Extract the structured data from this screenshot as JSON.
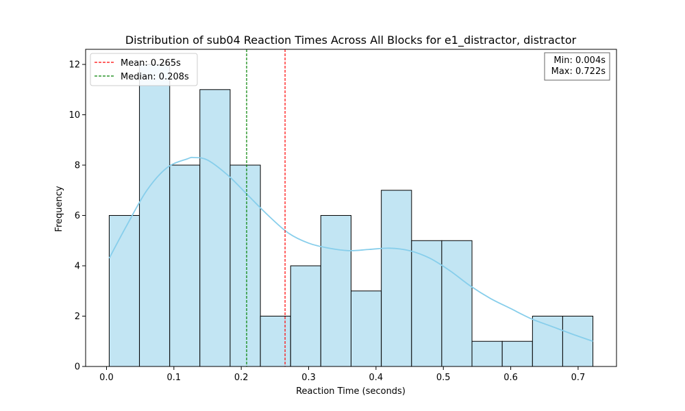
{
  "chart_data": {
    "type": "bar",
    "title": "Distribution of sub04 Reaction Times Across All Blocks for e1_distractor, distractor",
    "xlabel": "Reaction Time (seconds)",
    "ylabel": "Frequency",
    "xlim": [
      -0.031,
      0.757
    ],
    "ylim": [
      0,
      12.6
    ],
    "xticks": [
      0.0,
      0.1,
      0.2,
      0.3,
      0.4,
      0.5,
      0.6,
      0.7
    ],
    "xtick_labels": [
      "0.0",
      "0.1",
      "0.2",
      "0.3",
      "0.4",
      "0.5",
      "0.6",
      "0.7"
    ],
    "yticks": [
      0,
      2,
      4,
      6,
      8,
      10,
      12
    ],
    "ytick_labels": [
      "0",
      "2",
      "4",
      "6",
      "8",
      "10",
      "12"
    ],
    "bins": [
      {
        "start": 0.004,
        "end": 0.0489,
        "count": 6
      },
      {
        "start": 0.0489,
        "end": 0.0938,
        "count": 12
      },
      {
        "start": 0.0938,
        "end": 0.1386,
        "count": 8
      },
      {
        "start": 0.1386,
        "end": 0.1835,
        "count": 11
      },
      {
        "start": 0.1835,
        "end": 0.2284,
        "count": 8
      },
      {
        "start": 0.2284,
        "end": 0.2733,
        "count": 2
      },
      {
        "start": 0.2733,
        "end": 0.3181,
        "count": 4
      },
      {
        "start": 0.3181,
        "end": 0.363,
        "count": 6
      },
      {
        "start": 0.363,
        "end": 0.4079,
        "count": 3
      },
      {
        "start": 0.4079,
        "end": 0.4528,
        "count": 7
      },
      {
        "start": 0.4528,
        "end": 0.4976,
        "count": 5
      },
      {
        "start": 0.4976,
        "end": 0.5425,
        "count": 5
      },
      {
        "start": 0.5425,
        "end": 0.5874,
        "count": 1
      },
      {
        "start": 0.5874,
        "end": 0.6323,
        "count": 1
      },
      {
        "start": 0.6323,
        "end": 0.6771,
        "count": 2
      },
      {
        "start": 0.6771,
        "end": 0.722,
        "count": 2
      }
    ],
    "kde": {
      "x": [
        0.004,
        0.03,
        0.06,
        0.09,
        0.12,
        0.13,
        0.15,
        0.18,
        0.21,
        0.24,
        0.27,
        0.3,
        0.33,
        0.36,
        0.39,
        0.42,
        0.45,
        0.48,
        0.51,
        0.54,
        0.57,
        0.6,
        0.63,
        0.66,
        0.69,
        0.722
      ],
      "y": [
        4.3,
        5.6,
        7.0,
        7.9,
        8.25,
        8.3,
        8.2,
        7.6,
        6.8,
        6.0,
        5.3,
        4.9,
        4.7,
        4.6,
        4.65,
        4.7,
        4.6,
        4.3,
        3.8,
        3.2,
        2.7,
        2.3,
        1.9,
        1.6,
        1.3,
        1.0
      ],
      "color": "#87ceeb"
    },
    "bar_fill": "#c2e5f3",
    "bar_edge": "#000000",
    "mean": {
      "value": 0.265,
      "label": "Mean: 0.265s",
      "color": "#ff0000"
    },
    "median": {
      "value": 0.208,
      "label": "Median: 0.208s",
      "color": "#008000"
    },
    "legend_position": "upper-left",
    "stats_box": {
      "lines": [
        "Min: 0.004s",
        "Max: 0.722s"
      ],
      "position": "upper-right"
    },
    "grid": false
  }
}
